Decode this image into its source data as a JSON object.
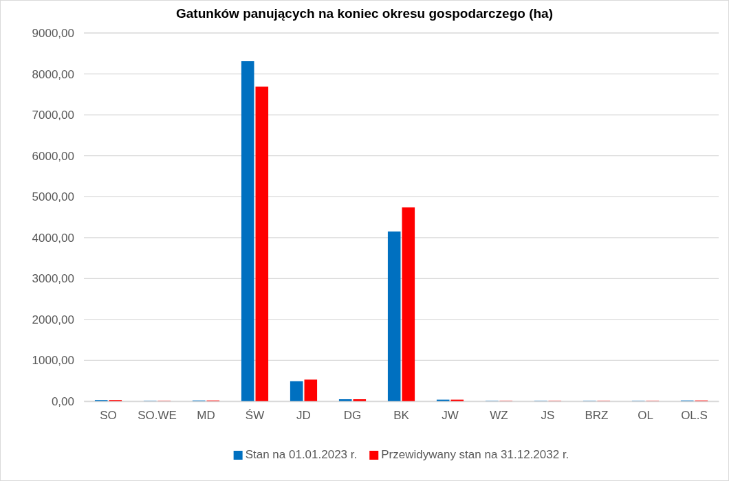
{
  "chart_data": {
    "type": "bar",
    "title": "Gatunków panujących na koniec okresu gospodarczego (ha)",
    "categories": [
      "SO",
      "SO.WE",
      "MD",
      "ŚW",
      "JD",
      "DG",
      "BK",
      "JW",
      "WZ",
      "JS",
      "BRZ",
      "OL",
      "OL.S"
    ],
    "series": [
      {
        "name": "Stan na 01.01.2023 r.",
        "color": "#0070c0",
        "values": [
          30,
          10,
          20,
          8310,
          490,
          50,
          4150,
          40,
          10,
          10,
          10,
          10,
          20
        ]
      },
      {
        "name": "Przewidywany stan na 31.12.2032 r.",
        "color": "#ff0000",
        "values": [
          30,
          10,
          20,
          7690,
          530,
          50,
          4740,
          40,
          10,
          10,
          10,
          10,
          20
        ]
      }
    ],
    "ylim": [
      0,
      9000
    ],
    "yticks": [
      {
        "value": 0,
        "label": "0,00"
      },
      {
        "value": 1000,
        "label": "1000,00"
      },
      {
        "value": 2000,
        "label": "2000,00"
      },
      {
        "value": 3000,
        "label": "3000,00"
      },
      {
        "value": 4000,
        "label": "4000,00"
      },
      {
        "value": 5000,
        "label": "5000,00"
      },
      {
        "value": 6000,
        "label": "6000,00"
      },
      {
        "value": 7000,
        "label": "7000,00"
      },
      {
        "value": 8000,
        "label": "8000,00"
      },
      {
        "value": 9000,
        "label": "9000,00"
      }
    ],
    "grid": "y",
    "legend": "bottom"
  }
}
